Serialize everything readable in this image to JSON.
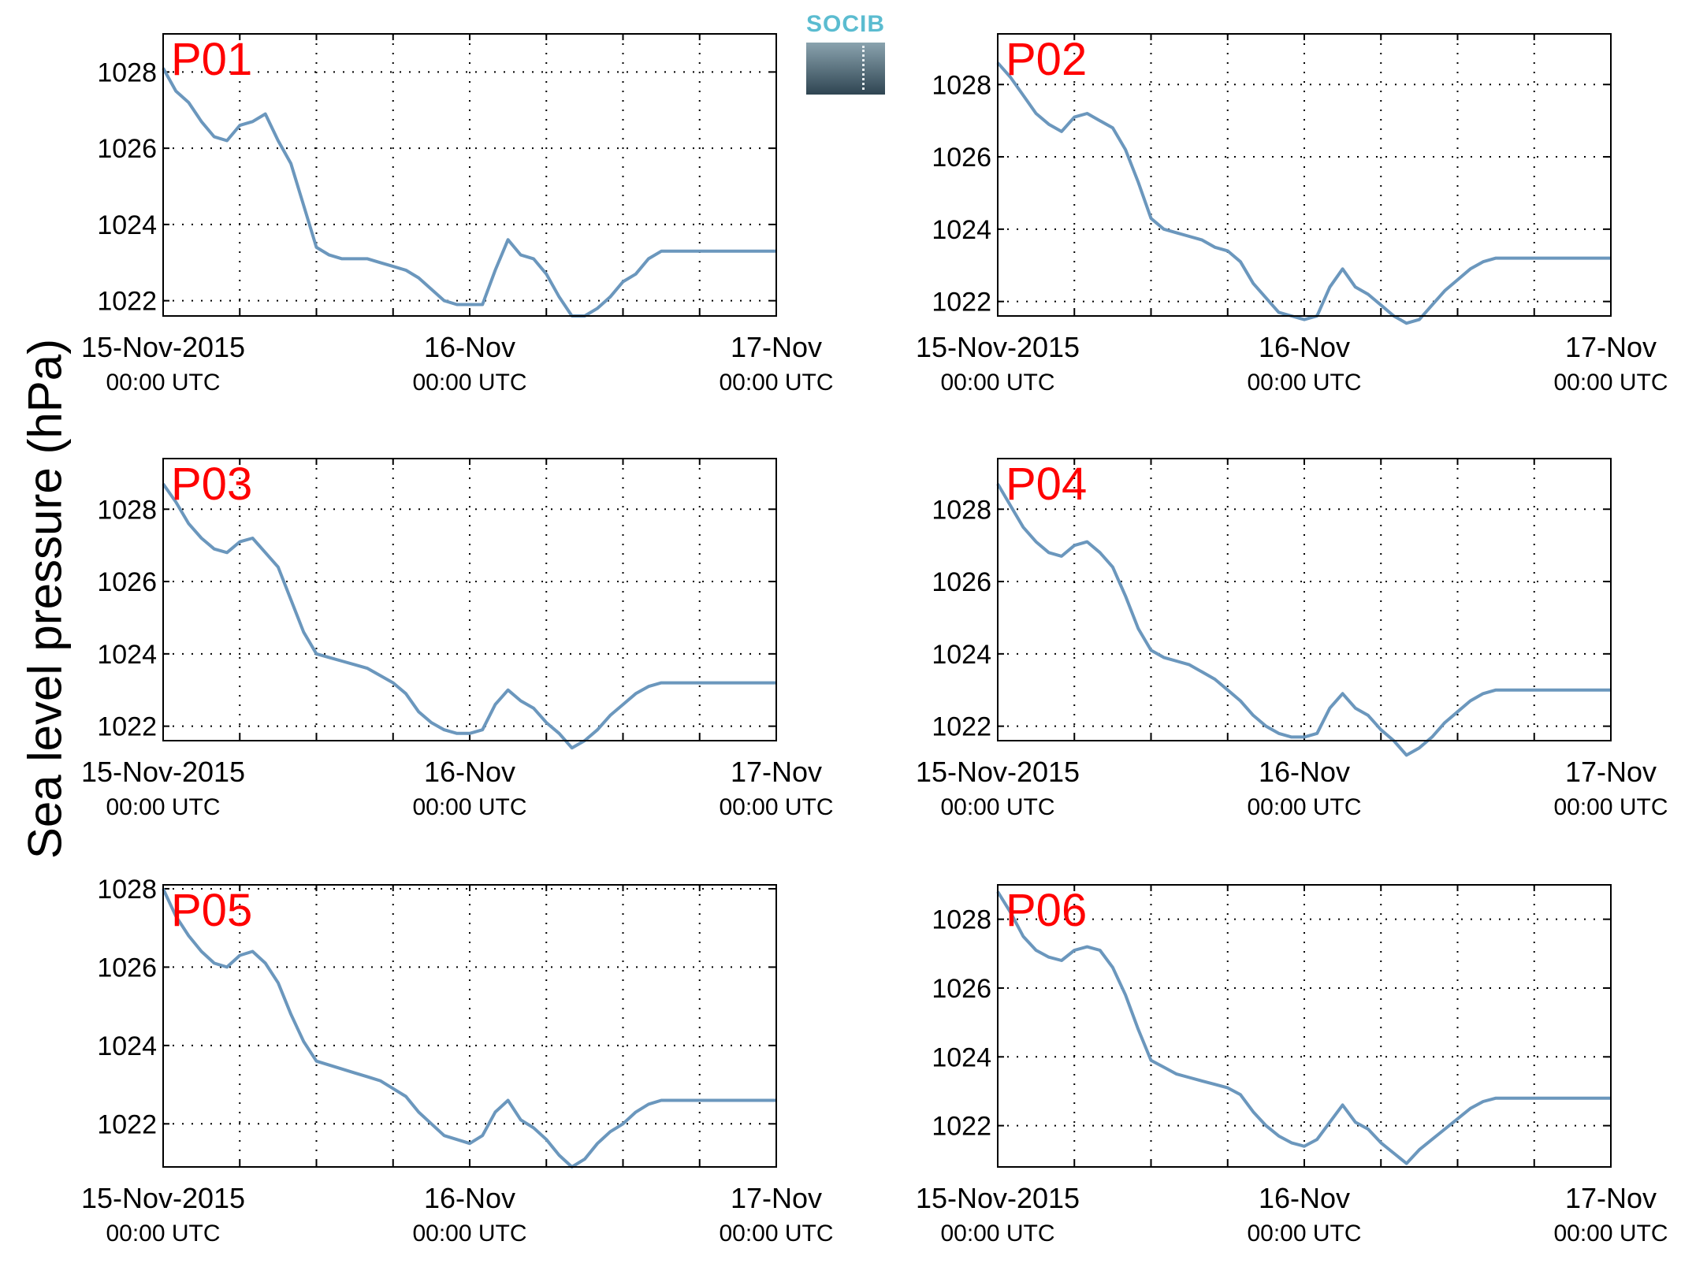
{
  "ylabel": "Sea level pressure (hPa)",
  "logo": {
    "text": "SOCIB"
  },
  "colors": {
    "line": "#6b97bd",
    "panel_label": "#ff0000",
    "grid": "#000000"
  },
  "x_ticks": [
    {
      "x": 0,
      "label": "15-Nov-2015",
      "sublabel": "00:00 UTC"
    },
    {
      "x": 24,
      "label": "16-Nov",
      "sublabel": "00:00 UTC"
    },
    {
      "x": 48,
      "label": "17-Nov",
      "sublabel": "00:00 UTC"
    }
  ],
  "chart_data": [
    {
      "type": "line",
      "panel_label": "P01",
      "xlim": [
        0,
        48
      ],
      "ylim": [
        1021.6,
        1029.0
      ],
      "y_ticks": [
        1022,
        1024,
        1026,
        1028
      ],
      "x_grid": [
        0,
        6,
        12,
        18,
        24,
        30,
        36,
        42,
        48
      ],
      "grid": "dotted",
      "series": [
        {
          "x": [
            0,
            1,
            2,
            3,
            4,
            5,
            6,
            7,
            8,
            9,
            10,
            11,
            12,
            13,
            14,
            15,
            16,
            17,
            18,
            19,
            20,
            21,
            22,
            23,
            24,
            25,
            26,
            27,
            28,
            29,
            30,
            31,
            32,
            33,
            34,
            35,
            36,
            37,
            38,
            39,
            40,
            41,
            42,
            43,
            44,
            45,
            46,
            47,
            48
          ],
          "y": [
            1028.1,
            1027.5,
            1027.2,
            1026.7,
            1026.3,
            1026.2,
            1026.6,
            1026.7,
            1026.9,
            1026.2,
            1025.6,
            1024.5,
            1023.4,
            1023.2,
            1023.1,
            1023.1,
            1023.1,
            1023.0,
            1022.9,
            1022.8,
            1022.6,
            1022.3,
            1022.0,
            1021.9,
            1021.9,
            1021.9,
            1022.8,
            1023.6,
            1023.2,
            1023.1,
            1022.7,
            1022.1,
            1021.6,
            1021.6,
            1021.8,
            1022.1,
            1022.5,
            1022.7,
            1023.1,
            1023.3,
            1023.3,
            1023.3,
            1023.3,
            1023.3,
            1023.3,
            1023.3,
            1023.3,
            1023.3,
            1023.3
          ]
        }
      ]
    },
    {
      "type": "line",
      "panel_label": "P02",
      "xlim": [
        0,
        48
      ],
      "ylim": [
        1021.6,
        1029.4
      ],
      "y_ticks": [
        1022,
        1024,
        1026,
        1028
      ],
      "x_grid": [
        0,
        6,
        12,
        18,
        24,
        30,
        36,
        42,
        48
      ],
      "grid": "dotted",
      "series": [
        {
          "x": [
            0,
            1,
            2,
            3,
            4,
            5,
            6,
            7,
            8,
            9,
            10,
            11,
            12,
            13,
            14,
            15,
            16,
            17,
            18,
            19,
            20,
            21,
            22,
            23,
            24,
            25,
            26,
            27,
            28,
            29,
            30,
            31,
            32,
            33,
            34,
            35,
            36,
            37,
            38,
            39,
            40,
            41,
            42,
            43,
            44,
            45,
            46,
            47,
            48
          ],
          "y": [
            1028.6,
            1028.2,
            1027.7,
            1027.2,
            1026.9,
            1026.7,
            1027.1,
            1027.2,
            1027.0,
            1026.8,
            1026.2,
            1025.3,
            1024.3,
            1024.0,
            1023.9,
            1023.8,
            1023.7,
            1023.5,
            1023.4,
            1023.1,
            1022.5,
            1022.1,
            1021.7,
            1021.6,
            1021.5,
            1021.6,
            1022.4,
            1022.9,
            1022.4,
            1022.2,
            1021.9,
            1021.6,
            1021.4,
            1021.5,
            1021.9,
            1022.3,
            1022.6,
            1022.9,
            1023.1,
            1023.2,
            1023.2,
            1023.2,
            1023.2,
            1023.2,
            1023.2,
            1023.2,
            1023.2,
            1023.2,
            1023.2
          ]
        }
      ]
    },
    {
      "type": "line",
      "panel_label": "P03",
      "xlim": [
        0,
        48
      ],
      "ylim": [
        1021.6,
        1029.4
      ],
      "y_ticks": [
        1022,
        1024,
        1026,
        1028
      ],
      "x_grid": [
        0,
        6,
        12,
        18,
        24,
        30,
        36,
        42,
        48
      ],
      "grid": "dotted",
      "series": [
        {
          "x": [
            0,
            1,
            2,
            3,
            4,
            5,
            6,
            7,
            8,
            9,
            10,
            11,
            12,
            13,
            14,
            15,
            16,
            17,
            18,
            19,
            20,
            21,
            22,
            23,
            24,
            25,
            26,
            27,
            28,
            29,
            30,
            31,
            32,
            33,
            34,
            35,
            36,
            37,
            38,
            39,
            40,
            41,
            42,
            43,
            44,
            45,
            46,
            47,
            48
          ],
          "y": [
            1028.7,
            1028.2,
            1027.6,
            1027.2,
            1026.9,
            1026.8,
            1027.1,
            1027.2,
            1026.8,
            1026.4,
            1025.5,
            1024.6,
            1024.0,
            1023.9,
            1023.8,
            1023.7,
            1023.6,
            1023.4,
            1023.2,
            1022.9,
            1022.4,
            1022.1,
            1021.9,
            1021.8,
            1021.8,
            1021.9,
            1022.6,
            1023.0,
            1022.7,
            1022.5,
            1022.1,
            1021.8,
            1021.4,
            1021.6,
            1021.9,
            1022.3,
            1022.6,
            1022.9,
            1023.1,
            1023.2,
            1023.2,
            1023.2,
            1023.2,
            1023.2,
            1023.2,
            1023.2,
            1023.2,
            1023.2,
            1023.2
          ]
        }
      ]
    },
    {
      "type": "line",
      "panel_label": "P04",
      "xlim": [
        0,
        48
      ],
      "ylim": [
        1021.6,
        1029.4
      ],
      "y_ticks": [
        1022,
        1024,
        1026,
        1028
      ],
      "x_grid": [
        0,
        6,
        12,
        18,
        24,
        30,
        36,
        42,
        48
      ],
      "grid": "dotted",
      "series": [
        {
          "x": [
            0,
            1,
            2,
            3,
            4,
            5,
            6,
            7,
            8,
            9,
            10,
            11,
            12,
            13,
            14,
            15,
            16,
            17,
            18,
            19,
            20,
            21,
            22,
            23,
            24,
            25,
            26,
            27,
            28,
            29,
            30,
            31,
            32,
            33,
            34,
            35,
            36,
            37,
            38,
            39,
            40,
            41,
            42,
            43,
            44,
            45,
            46,
            47,
            48
          ],
          "y": [
            1028.7,
            1028.1,
            1027.5,
            1027.1,
            1026.8,
            1026.7,
            1027.0,
            1027.1,
            1026.8,
            1026.4,
            1025.6,
            1024.7,
            1024.1,
            1023.9,
            1023.8,
            1023.7,
            1023.5,
            1023.3,
            1023.0,
            1022.7,
            1022.3,
            1022.0,
            1021.8,
            1021.7,
            1021.7,
            1021.8,
            1022.5,
            1022.9,
            1022.5,
            1022.3,
            1021.9,
            1021.6,
            1021.2,
            1021.4,
            1021.7,
            1022.1,
            1022.4,
            1022.7,
            1022.9,
            1023.0,
            1023.0,
            1023.0,
            1023.0,
            1023.0,
            1023.0,
            1023.0,
            1023.0,
            1023.0,
            1023.0
          ]
        }
      ]
    },
    {
      "type": "line",
      "panel_label": "P05",
      "xlim": [
        0,
        48
      ],
      "ylim": [
        1020.9,
        1028.1
      ],
      "y_ticks": [
        1022,
        1024,
        1026,
        1028
      ],
      "x_grid": [
        0,
        6,
        12,
        18,
        24,
        30,
        36,
        42,
        48
      ],
      "grid": "dotted",
      "series": [
        {
          "x": [
            0,
            1,
            2,
            3,
            4,
            5,
            6,
            7,
            8,
            9,
            10,
            11,
            12,
            13,
            14,
            15,
            16,
            17,
            18,
            19,
            20,
            21,
            22,
            23,
            24,
            25,
            26,
            27,
            28,
            29,
            30,
            31,
            32,
            33,
            34,
            35,
            36,
            37,
            38,
            39,
            40,
            41,
            42,
            43,
            44,
            45,
            46,
            47,
            48
          ],
          "y": [
            1028.0,
            1027.3,
            1026.8,
            1026.4,
            1026.1,
            1026.0,
            1026.3,
            1026.4,
            1026.1,
            1025.6,
            1024.8,
            1024.1,
            1023.6,
            1023.5,
            1023.4,
            1023.3,
            1023.2,
            1023.1,
            1022.9,
            1022.7,
            1022.3,
            1022.0,
            1021.7,
            1021.6,
            1021.5,
            1021.7,
            1022.3,
            1022.6,
            1022.1,
            1021.9,
            1021.6,
            1021.2,
            1020.9,
            1021.1,
            1021.5,
            1021.8,
            1022.0,
            1022.3,
            1022.5,
            1022.6,
            1022.6,
            1022.6,
            1022.6,
            1022.6,
            1022.6,
            1022.6,
            1022.6,
            1022.6,
            1022.6
          ]
        }
      ]
    },
    {
      "type": "line",
      "panel_label": "P06",
      "xlim": [
        0,
        48
      ],
      "ylim": [
        1020.8,
        1029.0
      ],
      "y_ticks": [
        1022,
        1024,
        1026,
        1028
      ],
      "x_grid": [
        0,
        6,
        12,
        18,
        24,
        30,
        36,
        42,
        48
      ],
      "grid": "dotted",
      "series": [
        {
          "x": [
            0,
            1,
            2,
            3,
            4,
            5,
            6,
            7,
            8,
            9,
            10,
            11,
            12,
            13,
            14,
            15,
            16,
            17,
            18,
            19,
            20,
            21,
            22,
            23,
            24,
            25,
            26,
            27,
            28,
            29,
            30,
            31,
            32,
            33,
            34,
            35,
            36,
            37,
            38,
            39,
            40,
            41,
            42,
            43,
            44,
            45,
            46,
            47,
            48
          ],
          "y": [
            1028.8,
            1028.2,
            1027.5,
            1027.1,
            1026.9,
            1026.8,
            1027.1,
            1027.2,
            1027.1,
            1026.6,
            1025.8,
            1024.8,
            1023.9,
            1023.7,
            1023.5,
            1023.4,
            1023.3,
            1023.2,
            1023.1,
            1022.9,
            1022.4,
            1022.0,
            1021.7,
            1021.5,
            1021.4,
            1021.6,
            1022.1,
            1022.6,
            1022.1,
            1021.9,
            1021.5,
            1021.2,
            1020.9,
            1021.3,
            1021.6,
            1021.9,
            1022.2,
            1022.5,
            1022.7,
            1022.8,
            1022.8,
            1022.8,
            1022.8,
            1022.8,
            1022.8,
            1022.8,
            1022.8,
            1022.8,
            1022.8
          ]
        }
      ]
    }
  ]
}
